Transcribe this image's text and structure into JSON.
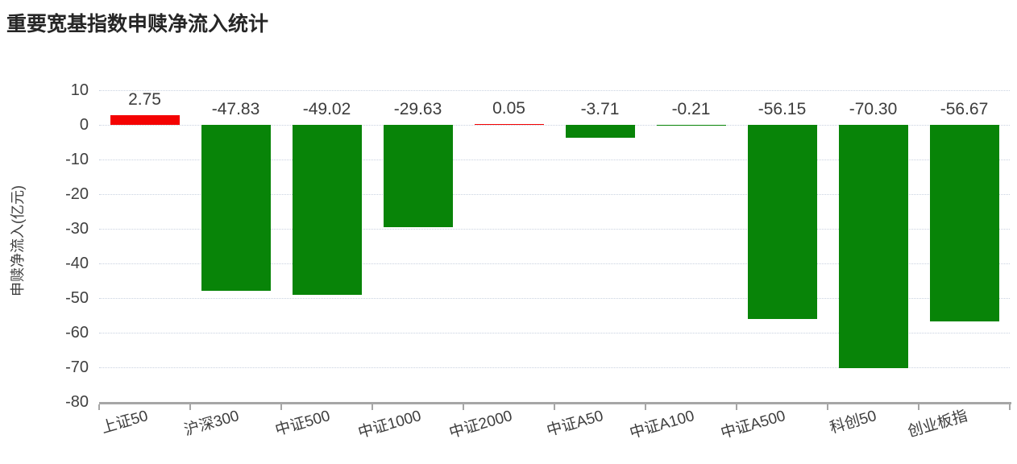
{
  "title": "重要宽基指数申赎净流入统计",
  "chart_data": {
    "type": "bar",
    "title": "重要宽基指数申赎净流入统计",
    "ylabel": "申赎净流入(亿元)",
    "xlabel": "",
    "categories": [
      "上证50",
      "沪深300",
      "中证500",
      "中证1000",
      "中证2000",
      "中证A50",
      "中证A100",
      "中证A500",
      "科创50",
      "创业板指"
    ],
    "values": [
      2.75,
      -47.83,
      -49.02,
      -29.63,
      0.05,
      -3.71,
      -0.21,
      -56.15,
      -70.3,
      -56.67
    ],
    "value_labels": [
      "2.75",
      "-47.83",
      "-49.02",
      "-29.63",
      "0.05",
      "-3.71",
      "-0.21",
      "-56.15",
      "-70.30",
      "-56.67"
    ],
    "ylim": [
      -80,
      10
    ],
    "yticks": [
      10,
      0,
      -10,
      -20,
      -30,
      -40,
      -50,
      -60,
      -70,
      -80
    ],
    "grid": "horizontal-dotted",
    "legend": "none",
    "bar_color_rule": "positive values red, negative values green",
    "colors": {
      "positive_bar": "#f40202",
      "negative_bar": "#088408",
      "gridline": "#c9d2e0",
      "axis": "#a6a6a6",
      "value_label": "#3d3d3d",
      "tick_label": "#404040",
      "title": "#262626"
    }
  }
}
